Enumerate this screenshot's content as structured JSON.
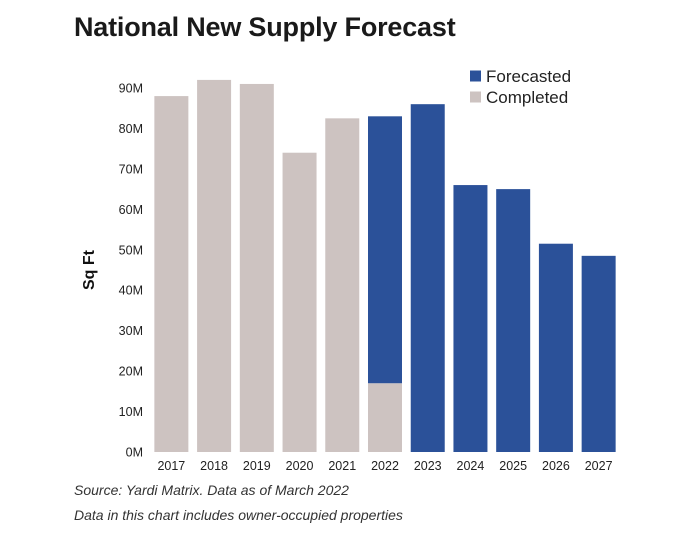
{
  "chart_data": {
    "type": "bar",
    "title": "National New Supply Forecast",
    "xlabel": "",
    "ylabel": "Sq Ft",
    "ylim": [
      0,
      90
    ],
    "yticks": [
      {
        "value": 0,
        "label": "0M"
      },
      {
        "value": 10,
        "label": "10M"
      },
      {
        "value": 20,
        "label": "20M"
      },
      {
        "value": 30,
        "label": "30M"
      },
      {
        "value": 40,
        "label": "40M"
      },
      {
        "value": 50,
        "label": "50M"
      },
      {
        "value": 60,
        "label": "60M"
      },
      {
        "value": 70,
        "label": "70M"
      },
      {
        "value": 80,
        "label": "80M"
      },
      {
        "value": 90,
        "label": "90M"
      }
    ],
    "stacked": true,
    "categories": [
      "2017",
      "2018",
      "2019",
      "2020",
      "2021",
      "2022",
      "2023",
      "2024",
      "2025",
      "2026",
      "2027"
    ],
    "series": [
      {
        "name": "Completed",
        "color": "#cdc3c1",
        "values": [
          88,
          92,
          91,
          74,
          82.5,
          17,
          0,
          0,
          0,
          0,
          0
        ]
      },
      {
        "name": "Forecasted",
        "color": "#2b5199",
        "values": [
          0,
          0,
          0,
          0,
          0,
          66,
          86,
          66,
          65,
          51.5,
          48.5
        ]
      }
    ],
    "legend": [
      {
        "name": "Forecasted",
        "color": "#2b5199"
      },
      {
        "name": "Completed",
        "color": "#cdc3c1"
      }
    ],
    "legend_position": "top-right",
    "grid": false
  },
  "footnotes": {
    "source": "Source: Yardi Matrix. Data as of March 2022",
    "note": "Data in this chart includes owner-occupied properties"
  }
}
